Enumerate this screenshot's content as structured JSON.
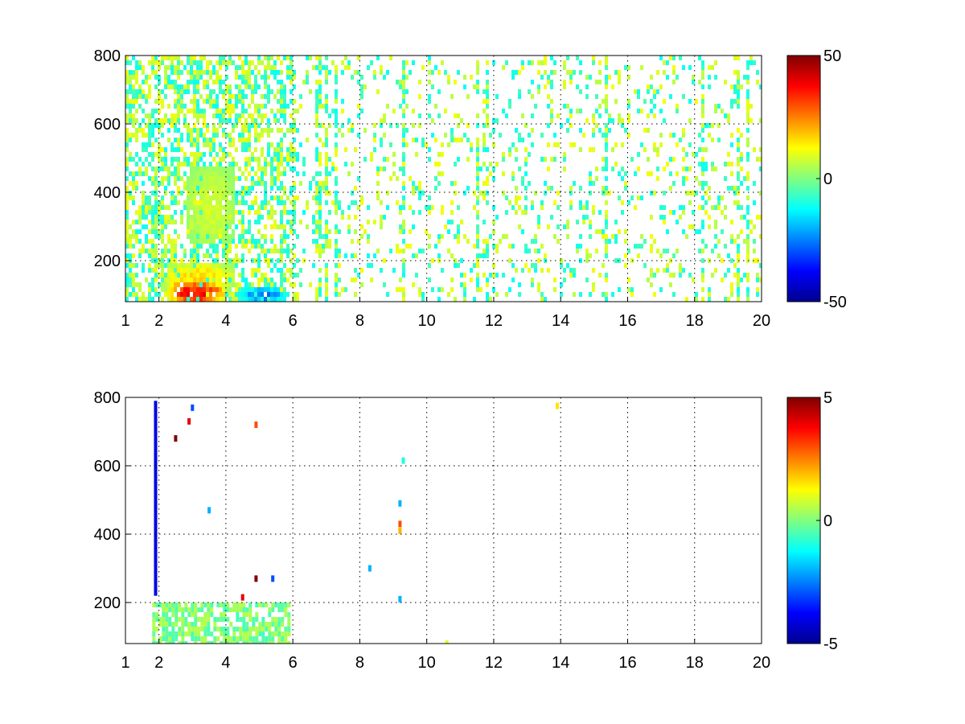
{
  "chart_data": [
    {
      "type": "heatmap",
      "title": "",
      "xlabel": "",
      "ylabel": "",
      "xlim": [
        1,
        20
      ],
      "ylim": [
        80,
        800
      ],
      "x_ticks": [
        1,
        2,
        4,
        6,
        8,
        10,
        12,
        14,
        16,
        18,
        20
      ],
      "y_ticks": [
        200,
        400,
        600,
        800
      ],
      "grid": true,
      "colormap": "jet",
      "colorbar": {
        "min": -50,
        "max": 50,
        "ticks": [
          50,
          0,
          -50
        ]
      },
      "fields": {
        "background": {
          "x_range": [
            1,
            20
          ],
          "y_range": [
            80,
            800
          ],
          "density": "dense scattered cells, denser for x < 6",
          "value_range": [
            -12,
            12
          ]
        },
        "hotspots": [
          {
            "label": "strong positive core",
            "x_range": [
              2.2,
              3.9
            ],
            "y_range": [
              80,
              150
            ],
            "peak_value": 45
          },
          {
            "label": "moderate positive band",
            "x_range": [
              2.0,
              4.2
            ],
            "y_range": [
              120,
              200
            ],
            "peak_value": 20
          },
          {
            "label": "strong negative tail",
            "x_range": [
              4.3,
              5.8
            ],
            "y_range": [
              80,
              130
            ],
            "peak_value": -30
          },
          {
            "label": "weak positive plume",
            "x_range": [
              2.8,
              4.2
            ],
            "y_range": [
              250,
              480
            ],
            "peak_value": 10
          }
        ]
      }
    },
    {
      "type": "heatmap",
      "title": "",
      "xlabel": "",
      "ylabel": "",
      "xlim": [
        1,
        20
      ],
      "ylim": [
        80,
        800
      ],
      "x_ticks": [
        1,
        2,
        4,
        6,
        8,
        10,
        12,
        14,
        16,
        18,
        20
      ],
      "y_ticks": [
        200,
        400,
        600,
        800
      ],
      "grid": true,
      "colormap": "jet",
      "colorbar": {
        "min": -5,
        "max": 5,
        "ticks": [
          5,
          0,
          -5
        ]
      },
      "fields": {
        "background": {
          "x_range": [
            1.8,
            5.9
          ],
          "y_range": [
            80,
            200
          ],
          "density": "dense band",
          "value_range": [
            -0.6,
            0.6
          ]
        },
        "points": [
          {
            "x": 1.9,
            "y_range": [
              220,
              790
            ],
            "value": -4
          },
          {
            "x": 2.5,
            "y": 680,
            "value": 5
          },
          {
            "x": 2.9,
            "y": 730,
            "value": 4
          },
          {
            "x": 3.0,
            "y": 770,
            "value": -3
          },
          {
            "x": 3.5,
            "y": 470,
            "value": -2
          },
          {
            "x": 4.5,
            "y": 215,
            "value": 4
          },
          {
            "x": 4.9,
            "y": 720,
            "value": 3
          },
          {
            "x": 4.9,
            "y": 270,
            "value": 5
          },
          {
            "x": 5.4,
            "y": 270,
            "value": -3
          },
          {
            "x": 8.3,
            "y": 300,
            "value": -2
          },
          {
            "x": 9.2,
            "y": 490,
            "value": -2
          },
          {
            "x": 9.2,
            "y": 430,
            "value": 3
          },
          {
            "x": 9.2,
            "y": 410,
            "value": 2
          },
          {
            "x": 9.2,
            "y": 210,
            "value": -2
          },
          {
            "x": 9.3,
            "y": 615,
            "value": -1
          },
          {
            "x": 10.6,
            "y": 80,
            "value": 1
          },
          {
            "x": 13.9,
            "y": 775,
            "value": 1.5
          }
        ]
      }
    }
  ]
}
